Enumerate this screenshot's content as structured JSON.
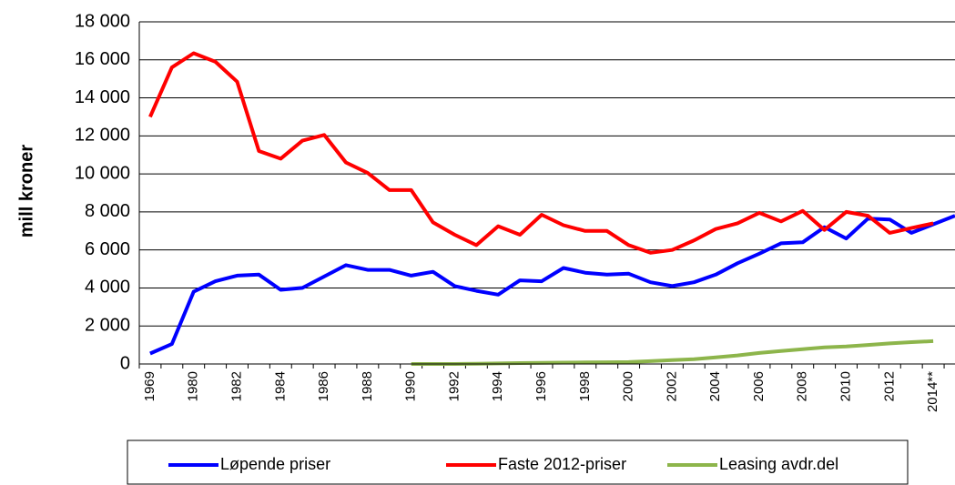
{
  "chart_data": {
    "type": "line",
    "ylabel": "mill kroner",
    "categories": [
      "1969",
      null,
      "1980",
      null,
      "1982",
      null,
      "1984",
      null,
      "1986",
      null,
      "1988",
      null,
      "1990",
      null,
      "1992",
      null,
      "1994",
      null,
      "1996",
      null,
      "1998",
      null,
      "2000",
      null,
      "2002",
      null,
      "2004",
      null,
      "2006",
      null,
      "2008",
      null,
      "2010",
      null,
      "2012",
      null,
      "2014**",
      null
    ],
    "ylim": [
      0,
      18000
    ],
    "yticks": [
      0,
      {
        "value": 2000,
        "label": "2 000"
      },
      {
        "value": 4000,
        "label": "4 000"
      },
      {
        "value": 6000,
        "label": "6 000"
      },
      {
        "value": 8000,
        "label": "8 000"
      },
      {
        "value": 10000,
        "label": "10 000"
      },
      {
        "value": 12000,
        "label": "12 000"
      },
      {
        "value": 14000,
        "label": "14 000"
      },
      {
        "value": 16000,
        "label": "16 000"
      },
      {
        "value": 18000,
        "label": "18 000"
      }
    ],
    "grid": true,
    "legend": "bottom",
    "series": [
      {
        "name": "Løpende priser",
        "color": "#0000ff",
        "values": [
          550,
          1050,
          3800,
          4350,
          4650,
          4700,
          3900,
          4000,
          4600,
          5200,
          4950,
          4950,
          4650,
          4850,
          4100,
          3850,
          3650,
          4400,
          4350,
          5050,
          4800,
          4700,
          4750,
          4300,
          4100,
          4300,
          4700,
          5300,
          5800,
          6350,
          6400,
          7200,
          6600,
          7650,
          7600,
          6900,
          7350,
          7800
        ]
      },
      {
        "name": "Faste 2012-priser",
        "color": "#ff0000",
        "values": [
          13000,
          15600,
          16350,
          15900,
          14850,
          11200,
          10800,
          11750,
          12050,
          10600,
          10050,
          9150,
          9150,
          7450,
          6800,
          6250,
          7250,
          6800,
          7850,
          7300,
          7000,
          7000,
          6250,
          5850,
          6000,
          6500,
          7100,
          7400,
          7950,
          7500,
          8050,
          7050,
          8000,
          7800,
          6900,
          7150,
          7400,
          null
        ]
      },
      {
        "name": "Leasing avdr.del",
        "color": "#8db54b",
        "values": [
          null,
          null,
          null,
          null,
          null,
          null,
          null,
          null,
          null,
          null,
          null,
          null,
          0,
          0,
          0,
          10,
          30,
          50,
          60,
          70,
          80,
          90,
          100,
          150,
          200,
          250,
          350,
          450,
          580,
          680,
          780,
          870,
          920,
          1000,
          1080,
          1150,
          1200,
          null
        ]
      }
    ]
  }
}
